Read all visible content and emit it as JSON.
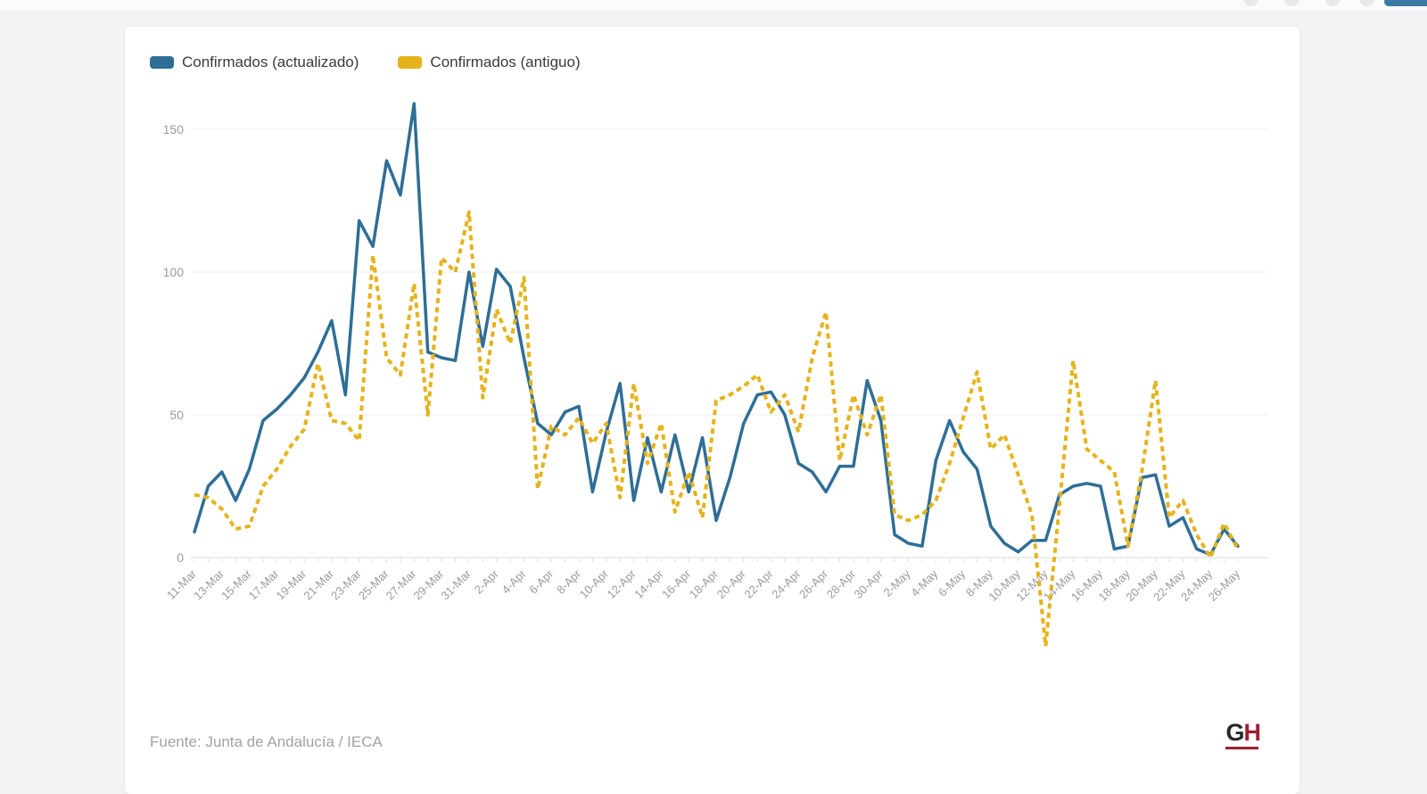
{
  "page": {
    "background": "#f3f3f5",
    "card_background": "#ffffff"
  },
  "top_toolbar": {
    "icons": [
      "toolbar-icon-1",
      "toolbar-icon-2",
      "toolbar-icon-3",
      "toolbar-icon-4"
    ],
    "accent_color": "#3d7ba6"
  },
  "legend": [
    {
      "label": "Confirmados (actualizado)",
      "color": "#2e6e96",
      "style": "solid"
    },
    {
      "label": "Confirmados (antiguo)",
      "color": "#e5b31c",
      "style": "dashed"
    }
  ],
  "footer": {
    "source": "Fuente: Junta de Andalucía / IECA",
    "logo": {
      "g": "G",
      "h": "H",
      "g_color": "#2b2626",
      "h_color": "#a01d30",
      "underline_color": "#a01d30"
    }
  },
  "chart_data": {
    "type": "line",
    "title": "",
    "xlabel": "",
    "ylabel": "",
    "grid": true,
    "legend_position": "top-left",
    "ylim": [
      -40,
      165
    ],
    "yticks": [
      0,
      50,
      100,
      150
    ],
    "x_label_every": 2,
    "x": [
      "11-Mar",
      "12-Mar",
      "13-Mar",
      "14-Mar",
      "15-Mar",
      "16-Mar",
      "17-Mar",
      "18-Mar",
      "19-Mar",
      "20-Mar",
      "21-Mar",
      "22-Mar",
      "23-Mar",
      "24-Mar",
      "25-Mar",
      "26-Mar",
      "27-Mar",
      "28-Mar",
      "29-Mar",
      "30-Mar",
      "31-Mar",
      "1-Apr",
      "2-Apr",
      "3-Apr",
      "4-Apr",
      "5-Apr",
      "6-Apr",
      "7-Apr",
      "8-Apr",
      "9-Apr",
      "10-Apr",
      "11-Apr",
      "12-Apr",
      "13-Apr",
      "14-Apr",
      "15-Apr",
      "16-Apr",
      "17-Apr",
      "18-Apr",
      "19-Apr",
      "20-Apr",
      "21-Apr",
      "22-Apr",
      "23-Apr",
      "24-Apr",
      "25-Apr",
      "26-Apr",
      "27-Apr",
      "28-Apr",
      "29-Apr",
      "30-Apr",
      "1-May",
      "2-May",
      "3-May",
      "4-May",
      "5-May",
      "6-May",
      "7-May",
      "8-May",
      "9-May",
      "10-May",
      "11-May",
      "12-May",
      "13-May",
      "14-May",
      "15-May",
      "16-May",
      "17-May",
      "18-May",
      "19-May",
      "20-May",
      "21-May",
      "22-May",
      "23-May",
      "24-May",
      "25-May",
      "26-May"
    ],
    "series": [
      {
        "name": "Confirmados (actualizado)",
        "color": "#2e6e96",
        "dashed": false,
        "values": [
          9,
          25,
          30,
          20,
          31,
          48,
          52,
          57,
          63,
          72,
          83,
          57,
          118,
          109,
          139,
          127,
          159,
          72,
          70,
          69,
          100,
          74,
          101,
          95,
          70,
          47,
          43,
          51,
          53,
          23,
          44,
          61,
          20,
          42,
          23,
          43,
          23,
          42,
          13,
          28,
          47,
          57,
          58,
          50,
          33,
          30,
          23,
          32,
          32,
          62,
          48,
          8,
          5,
          4,
          34,
          48,
          37,
          31,
          11,
          5,
          2,
          6,
          6,
          22,
          25,
          26,
          25,
          3,
          4,
          28,
          29,
          11,
          14,
          3,
          1,
          10,
          4
        ]
      },
      {
        "name": "Confirmados (antiguo)",
        "color": "#e5b31c",
        "dashed": true,
        "values": [
          22,
          21,
          17,
          10,
          11,
          25,
          31,
          39,
          45,
          68,
          48,
          47,
          41,
          106,
          70,
          64,
          96,
          50,
          105,
          100,
          121,
          56,
          87,
          75,
          98,
          24,
          46,
          43,
          49,
          40,
          47,
          21,
          61,
          33,
          47,
          16,
          30,
          14,
          55,
          57,
          60,
          64,
          51,
          57,
          44,
          70,
          86,
          34,
          57,
          43,
          57,
          15,
          13,
          15,
          20,
          33,
          49,
          65,
          38,
          43,
          29,
          15,
          -31,
          18,
          69,
          38,
          34,
          30,
          4,
          30,
          62,
          14,
          20,
          8,
          0,
          12,
          3
        ]
      }
    ],
    "grid_color": "#ededed",
    "axis_color": "#d9d9d9",
    "tick_label_color": "#9a9a9a"
  }
}
